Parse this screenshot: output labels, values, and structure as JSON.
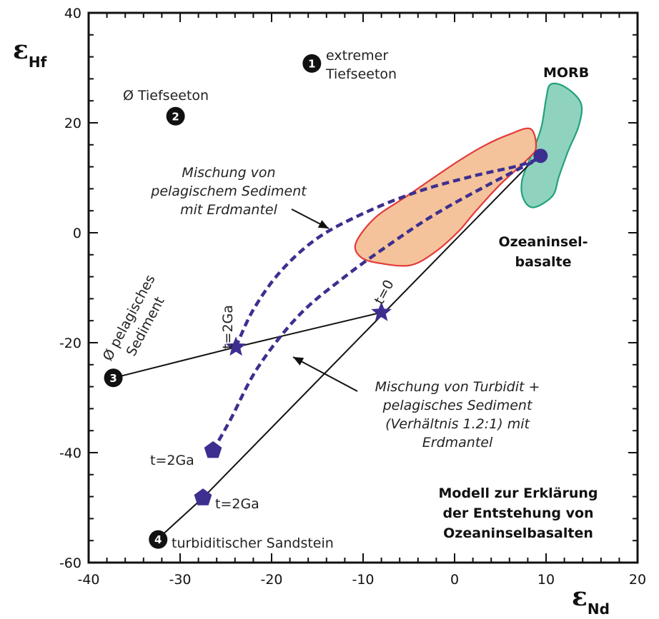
{
  "chart_data": {
    "type": "scatter",
    "x_axis": {
      "symbol": "ε",
      "subscript": "Nd",
      "range": [
        -40,
        20
      ],
      "tick_labels": [
        "-40",
        "-30",
        "-20",
        "-10",
        "0",
        "10",
        "20"
      ]
    },
    "y_axis": {
      "symbol": "ε",
      "subscript": "Hf",
      "range": [
        -60,
        40
      ],
      "tick_labels": [
        "-60",
        "-40",
        "-20",
        "0",
        "20",
        "40"
      ]
    },
    "grid": false,
    "colors": {
      "mixing": "#3d2f8f",
      "marker": "#3d2f8f",
      "morb_fill": "#8fd3bf",
      "morb_edge": "#22a07c",
      "oib_fill": "#f5c39b",
      "oib_edge": "#e23a3a",
      "line": "#111111",
      "badge": "#111111"
    },
    "regions": [
      {
        "name": "MORB",
        "outline": [
          [
            10.5,
            27
          ],
          [
            12.1,
            26.5
          ],
          [
            13.8,
            23.6
          ],
          [
            13.6,
            19.6
          ],
          [
            12.4,
            14.8
          ],
          [
            11.4,
            10.2
          ],
          [
            10.7,
            6.7
          ],
          [
            8.6,
            4.6
          ],
          [
            7.5,
            6.3
          ],
          [
            7.4,
            9.7
          ],
          [
            8.6,
            15
          ],
          [
            9.5,
            19.3
          ],
          [
            10.0,
            24.3
          ]
        ]
      },
      {
        "name": "Ozeaninsel-basalte",
        "outline": [
          [
            8.3,
            18.9
          ],
          [
            6.0,
            17.9
          ],
          [
            3.2,
            15.8
          ],
          [
            0.1,
            12.7
          ],
          [
            -5.1,
            6.8
          ],
          [
            -8.7,
            2.7
          ],
          [
            -10.8,
            -1.9
          ],
          [
            -10.2,
            -4.5
          ],
          [
            -8.0,
            -5.6
          ],
          [
            -4.8,
            -5.9
          ],
          [
            -2.2,
            -3.6
          ],
          [
            0.4,
            0.2
          ],
          [
            2.3,
            3.9
          ],
          [
            5.0,
            8.8
          ],
          [
            8.0,
            13.4
          ],
          [
            8.9,
            15.5
          ]
        ]
      }
    ],
    "series": [
      {
        "kind": "line",
        "points": [
          [
            -37.5,
            -26.5
          ],
          [
            -23.9,
            -20.8
          ],
          [
            -8.0,
            -14.5
          ]
        ]
      },
      {
        "kind": "line",
        "points": [
          [
            -32.5,
            -55.8
          ],
          [
            -27.5,
            -48.2
          ],
          [
            9.2,
            14.2
          ]
        ]
      },
      {
        "kind": "dashed",
        "points": [
          [
            -23.9,
            -20.8
          ],
          [
            -22,
            -14
          ],
          [
            -19,
            -7
          ],
          [
            -15,
            -1
          ],
          [
            -10,
            3.5
          ],
          [
            -4,
            7.5
          ],
          [
            2,
            10.3
          ],
          [
            7,
            12.2
          ],
          [
            9.4,
            13.6
          ]
        ]
      },
      {
        "kind": "dashed",
        "points": [
          [
            -26.4,
            -39.6
          ],
          [
            -24.5,
            -34
          ],
          [
            -21.5,
            -24.5
          ],
          [
            -17,
            -15
          ],
          [
            -12,
            -8
          ],
          [
            -7,
            -2
          ],
          [
            -2,
            3.5
          ],
          [
            4,
            9
          ],
          [
            9.3,
            13.5
          ]
        ]
      }
    ],
    "markers": [
      {
        "shape": "star",
        "x": -23.9,
        "y": -20.8
      },
      {
        "shape": "star",
        "x": -8.0,
        "y": -14.5
      },
      {
        "shape": "pentagon",
        "x": -26.4,
        "y": -39.6
      },
      {
        "shape": "pentagon",
        "x": -27.5,
        "y": -48.2
      },
      {
        "shape": "circle",
        "x": 9.4,
        "y": 14.0
      }
    ],
    "samples": [
      {
        "number": "1",
        "x": -15.6,
        "y": 30.8,
        "label_lines": [
          "extremer",
          "Tiefseeton"
        ]
      },
      {
        "number": "2",
        "x": -30.5,
        "y": 21.2,
        "label_lines": [
          "Ø Tiefseeton"
        ]
      },
      {
        "number": "3",
        "x": -37.3,
        "y": -26.4,
        "label_lines": [
          "Ø pelagisches",
          "Sediment"
        ]
      },
      {
        "number": "4",
        "x": -32.4,
        "y": -55.8,
        "label_lines": [
          "turbiditischer Sandstein"
        ]
      }
    ],
    "annotations": {
      "morb": "MORB",
      "oib": [
        "Ozeaninsel-",
        "basalte"
      ],
      "mix1": [
        "Mischung von",
        "pelagischem Sediment",
        "mit Erdmantel"
      ],
      "mix2": [
        "Mischung von Turbidit +",
        "pelagisches Sediment",
        "(Verhältnis 1.2:1) mit",
        "Erdmantel"
      ],
      "t0": "t=0",
      "t2ga_star": "t=2Ga",
      "t2ga_pent_upper": "t=2Ga",
      "t2ga_pent_lower": "t=2Ga",
      "model": [
        "Modell zur Erklärung",
        "der Entstehung von",
        "Ozeaninselbasalten"
      ]
    }
  }
}
